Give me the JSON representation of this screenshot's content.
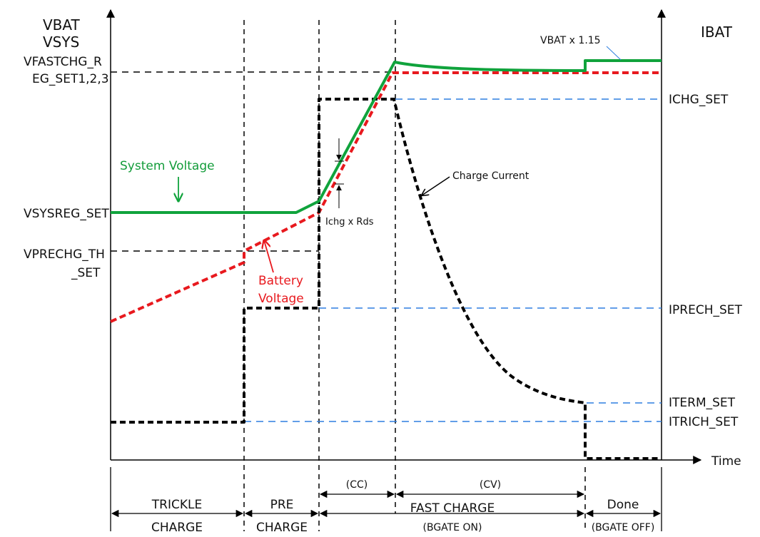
{
  "axes": {
    "left_title_line1": "VBAT",
    "left_title_line2": "VSYS",
    "right_title": "IBAT",
    "x_title": "Time"
  },
  "left_labels": {
    "vfastchg_line1": "VFASTCHG_R",
    "vfastchg_line2": "EG_SET1,2,3",
    "vsysreg": "VSYSREG_SET",
    "vprechg_line1": "VPRECHG_TH",
    "vprechg_line2": "_SET"
  },
  "right_labels": {
    "ichg": "ICHG_SET",
    "iprech": "IPRECH_SET",
    "iterm": "ITERM_SET",
    "itrich": "ITRICH_SET"
  },
  "annotations": {
    "vbat_x115": "VBAT x 1.15",
    "system_voltage": "System Voltage",
    "battery_voltage_line1": "Battery",
    "battery_voltage_line2": "Voltage",
    "charge_current": "Charge Current",
    "ichg_rds": "Ichg x Rds"
  },
  "phases": {
    "cc": "(CC)",
    "cv": "(CV)",
    "trickle_line1": "TRICKLE",
    "trickle_line2": "CHARGE",
    "pre_line1": "PRE",
    "pre_line2": "CHARGE",
    "fast_line1": "FAST CHARGE",
    "fast_line2": "(BGATE ON)",
    "done_line1": "Done",
    "done_line2": "(BGATE OFF)"
  },
  "colors": {
    "system_voltage": "#10a33c",
    "battery_voltage": "#e8191e",
    "charge_current": "#000000",
    "current_thresholds": "#2f7fe0",
    "voltage_thresholds": "#000000"
  }
}
